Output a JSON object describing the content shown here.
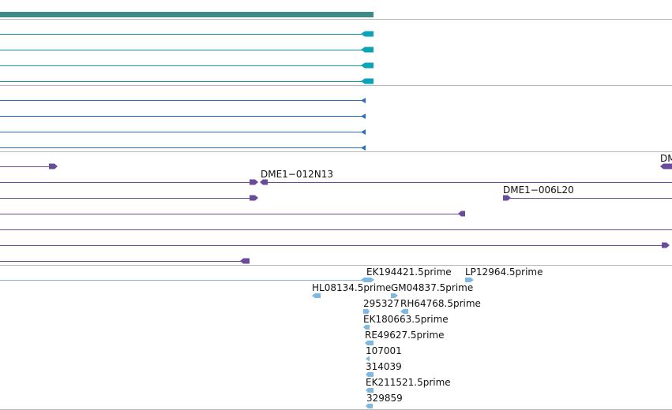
{
  "labels": {
    "t3_r0_right": "DM",
    "t3_r1": "DME1−012N13",
    "t3_r2": "DME1−006L20",
    "t4_a": "EK194421.5prime",
    "t4_b": "LP12964.5prime",
    "t4_c": "HL08134.5prime",
    "t4_d": "GM04837.5prime",
    "t4_e": "295327",
    "t4_f": "RH64768.5prime",
    "t4_g": "EK180663.5prime",
    "t4_h": "RE49627.5prime",
    "t4_i": "107001",
    "t4_j": "314039",
    "t4_k": "EK211521.5prime",
    "t4_l": "329859"
  },
  "colors": {
    "gene": "#3d8a86",
    "transcript": "#0e9aa7",
    "cds": "#2b6fc4",
    "clone": "#6a4c9c",
    "est": "#7fb8e0",
    "separator": "#b8b8b8"
  }
}
